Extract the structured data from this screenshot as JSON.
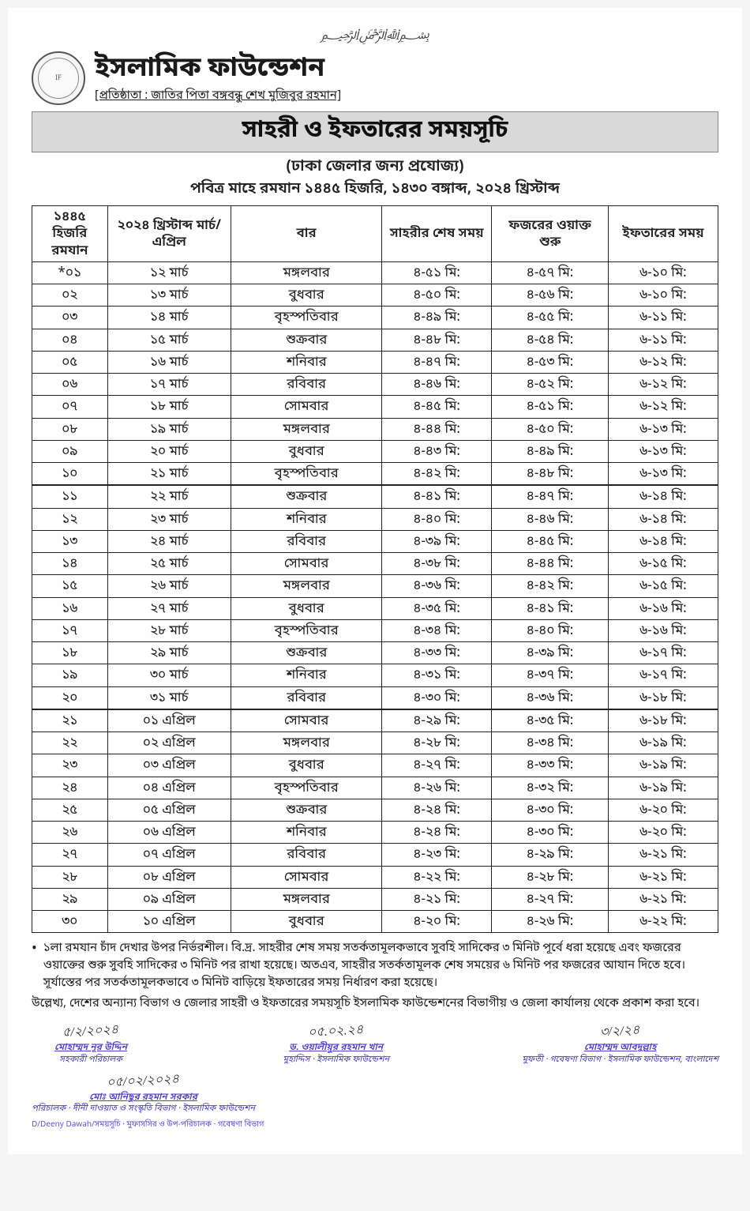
{
  "header": {
    "bismillah": "﷽",
    "org_name": "ইসলামিক ফাউন্ডেশন",
    "founder_line": "[প্রতিষ্ঠাতা : জাতির পিতা বঙ্গবন্ধু শেখ মুজিবুর রহমান]",
    "title": "সাহরী ও ইফতারের সময়সূচি",
    "subtitle": "(ঢাকা জেলার জন্য প্রযোজ্য)",
    "year_line": "পবিত্র মাহে রমযান ১৪৪৫ হিজরি, ১৪৩০ বঙ্গাব্দ, ২০২৪ খ্রিস্টাব্দ"
  },
  "table": {
    "columns": [
      "১৪৪৫ হিজরি রমযান",
      "২০২৪ খ্রিস্টাব্দ মার্চ/এপ্রিল",
      "বার",
      "সাহরীর শেষ সময়",
      "ফজরের ওয়াক্ত শুরু",
      "ইফতারের সময়"
    ],
    "rows": [
      [
        "*০১",
        "১২ মার্চ",
        "মঙ্গলবার",
        "৪-৫১ মি:",
        "৪-৫৭ মি:",
        "৬-১০ মি:"
      ],
      [
        "০২",
        "১৩ মার্চ",
        "বুধবার",
        "৪-৫০ মি:",
        "৪-৫৬ মি:",
        "৬-১০ মি:"
      ],
      [
        "০৩",
        "১৪ মার্চ",
        "বৃহস্পতিবার",
        "৪-৪৯ মি:",
        "৪-৫৫ মি:",
        "৬-১১ মি:"
      ],
      [
        "০৪",
        "১৫ মার্চ",
        "শুক্রবার",
        "৪-৪৮ মি:",
        "৪-৫৪ মি:",
        "৬-১১ মি:"
      ],
      [
        "০৫",
        "১৬ মার্চ",
        "শনিবার",
        "৪-৪৭ মি:",
        "৪-৫৩ মি:",
        "৬-১২ মি:"
      ],
      [
        "০৬",
        "১৭ মার্চ",
        "রবিবার",
        "৪-৪৬ মি:",
        "৪-৫২ মি:",
        "৬-১২ মি:"
      ],
      [
        "০৭",
        "১৮ মার্চ",
        "সোমবার",
        "৪-৪৫ মি:",
        "৪-৫১ মি:",
        "৬-১২ মি:"
      ],
      [
        "০৮",
        "১৯ মার্চ",
        "মঙ্গলবার",
        "৪-৪৪ মি:",
        "৪-৫০ মি:",
        "৬-১৩ মি:"
      ],
      [
        "০৯",
        "২০ মার্চ",
        "বুধবার",
        "৪-৪৩ মি:",
        "৪-৪৯ মি:",
        "৬-১৩ মি:"
      ],
      [
        "১০",
        "২১ মার্চ",
        "বৃহস্পতিবার",
        "৪-৪২ মি:",
        "৪-৪৮ মি:",
        "৬-১৩ মি:"
      ],
      [
        "১১",
        "২২ মার্চ",
        "শুক্রবার",
        "৪-৪১ মি:",
        "৪-৪৭ মি:",
        "৬-১৪ মি:"
      ],
      [
        "১২",
        "২৩ মার্চ",
        "শনিবার",
        "৪-৪০ মি:",
        "৪-৪৬ মি:",
        "৬-১৪ মি:"
      ],
      [
        "১৩",
        "২৪ মার্চ",
        "রবিবার",
        "৪-৩৯ মি:",
        "৪-৪৫ মি:",
        "৬-১৪ মি:"
      ],
      [
        "১৪",
        "২৫ মার্চ",
        "সোমবার",
        "৪-৩৮ মি:",
        "৪-৪৪ মি:",
        "৬-১৫ মি:"
      ],
      [
        "১৫",
        "২৬ মার্চ",
        "মঙ্গলবার",
        "৪-৩৬ মি:",
        "৪-৪২ মি:",
        "৬-১৫ মি:"
      ],
      [
        "১৬",
        "২৭ মার্চ",
        "বুধবার",
        "৪-৩৫ মি:",
        "৪-৪১ মি:",
        "৬-১৬ মি:"
      ],
      [
        "১৭",
        "২৮ মার্চ",
        "বৃহস্পতিবার",
        "৪-৩৪ মি:",
        "৪-৪০ মি:",
        "৬-১৬ মি:"
      ],
      [
        "১৮",
        "২৯ মার্চ",
        "শুক্রবার",
        "৪-৩৩ মি:",
        "৪-৩৯ মি:",
        "৬-১৭ মি:"
      ],
      [
        "১৯",
        "৩০ মার্চ",
        "শনিবার",
        "৪-৩১ মি:",
        "৪-৩৭ মি:",
        "৬-১৭ মি:"
      ],
      [
        "২০",
        "৩১ মার্চ",
        "রবিবার",
        "৪-৩০ মি:",
        "৪-৩৬ মি:",
        "৬-১৮ মি:"
      ],
      [
        "২১",
        "০১ এপ্রিল",
        "সোমবার",
        "৪-২৯ মি:",
        "৪-৩৫ মি:",
        "৬-১৮ মি:"
      ],
      [
        "২২",
        "০২ এপ্রিল",
        "মঙ্গলবার",
        "৪-২৮ মি:",
        "৪-৩৪ মি:",
        "৬-১৯ মি:"
      ],
      [
        "২৩",
        "০৩ এপ্রিল",
        "বুধবার",
        "৪-২৭ মি:",
        "৪-৩৩ মি:",
        "৬-১৯ মি:"
      ],
      [
        "২৪",
        "০৪ এপ্রিল",
        "বৃহস্পতিবার",
        "৪-২৬ মি:",
        "৪-৩২ মি:",
        "৬-১৯ মি:"
      ],
      [
        "২৫",
        "০৫ এপ্রিল",
        "শুক্রবার",
        "৪-২৪ মি:",
        "৪-৩০ মি:",
        "৬-২০ মি:"
      ],
      [
        "২৬",
        "০৬ এপ্রিল",
        "শনিবার",
        "৪-২৪ মি:",
        "৪-৩০ মি:",
        "৬-২০ মি:"
      ],
      [
        "২৭",
        "০৭ এপ্রিল",
        "রবিবার",
        "৪-২৩ মি:",
        "৪-২৯ মি:",
        "৬-২১ মি:"
      ],
      [
        "২৮",
        "০৮ এপ্রিল",
        "সোমবার",
        "৪-২২ মি:",
        "৪-২৮ মি:",
        "৬-২১ মি:"
      ],
      [
        "২৯",
        "০৯ এপ্রিল",
        "মঙ্গলবার",
        "৪-২১ মি:",
        "৪-২৭ মি:",
        "৬-২১ মি:"
      ],
      [
        "৩০",
        "১০ এপ্রিল",
        "বুধবার",
        "৪-২০ মি:",
        "৪-২৬ মি:",
        "৬-২২ মি:"
      ]
    ],
    "section_breaks": [
      10,
      20
    ],
    "col_classes": [
      "col-hijri",
      "col-date",
      "col-day",
      "col-sahri",
      "col-fajr",
      "col-iftar"
    ]
  },
  "notes": {
    "line1": "১লা রমযান চাঁদ দেখার উপর নির্ভরশীল। বি.দ্র. সাহরীর শেষ সময় সতর্কতামূলকভাবে সুবহি সাদিকের ৩ মিনিট পূর্বে ধরা হয়েছে এবং ফজরের ওয়াক্তের শুরু সুবহি সাদিকের ৩ মিনিট পর রাখা হয়েছে। অতএব, সাহরীর সতর্কতামূলক শেষ সময়ের ৬ মিনিট পর ফজরের আযান দিতে হবে। সূর্যাস্তের পর সতর্কতামূলকভাবে ৩ মিনিট বাড়িয়ে ইফতারের সময় নির্ধারণ করা হয়েছে।",
    "line2": "উল্লেখ্য, দেশের অন্যান্য বিভাগ ও জেলার সাহরী ও ইফতারের সময়সূচি ইসলামিক ফাউন্ডেশনের বিভাগীয় ও জেলা কার্যালয় থেকে প্রকাশ করা হবে।"
  },
  "signatures": [
    {
      "scribble": "৫/২/২০২৪",
      "name": "মোহাম্মদ নূর উদ্দিন",
      "role": "সহকারী পরিচালক"
    },
    {
      "scribble": "০৫.০২.২৪",
      "name": "ড. ওয়ালীয়ুর রহমান খান",
      "role": "মুহাদ্দিস · ইসলামিক ফাউন্ডেশন"
    },
    {
      "scribble": "৩/২/২৪",
      "name": "মোহাম্মদ আবদুল্লাহ",
      "role": "মুফতী · গবেষণা বিভাগ · ইসলামিক ফাউন্ডেশন, বাংলাদেশ"
    },
    {
      "scribble": "০৫/০২/২০২৪",
      "name": "মোঃ আনিছুর রহমান সরকার",
      "role": "পরিচালক · দীনী দাওয়াত ও সংস্কৃতি বিভাগ · ইসলামিক ফাউন্ডেশন"
    }
  ],
  "footer_left": "D/Deeny Dawah/সময়সূচি · মুফাসসির ও উপ-পরিচালক · গবেষণা বিভাগ"
}
